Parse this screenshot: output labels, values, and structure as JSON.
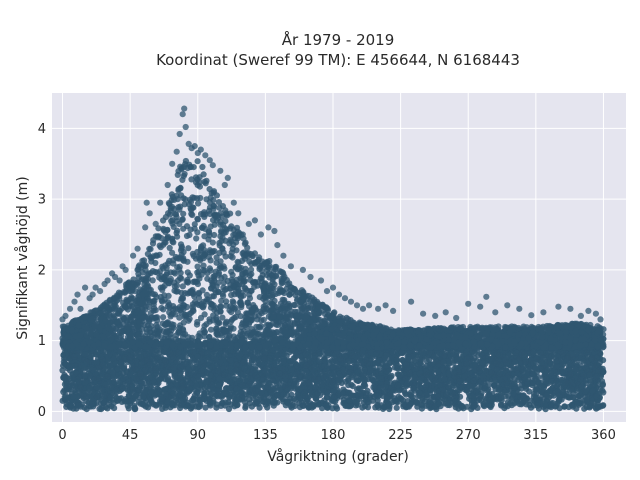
{
  "chart_data": {
    "type": "scatter",
    "title_line1": "År 1979 - 2019",
    "title_line2": "Koordinat (Sweref 99 TM): E 456644, N 6168443",
    "xlabel": "Vågriktning (grader)",
    "ylabel": "Signifikant våghöjd (m)",
    "xlim": [
      -7,
      375
    ],
    "ylim": [
      -0.15,
      4.5
    ],
    "xticks": [
      0,
      45,
      90,
      135,
      180,
      225,
      270,
      315,
      360
    ],
    "yticks": [
      0,
      1,
      2,
      3,
      4
    ],
    "grid": true,
    "marker_color": "#2f5670",
    "background": "#e5e5ef",
    "envelope": [
      {
        "x": 0,
        "y": 1.2
      },
      {
        "x": 15,
        "y": 1.35
      },
      {
        "x": 30,
        "y": 1.55
      },
      {
        "x": 45,
        "y": 1.85
      },
      {
        "x": 60,
        "y": 2.4
      },
      {
        "x": 70,
        "y": 2.9
      },
      {
        "x": 80,
        "y": 3.6
      },
      {
        "x": 88,
        "y": 3.6
      },
      {
        "x": 95,
        "y": 3.4
      },
      {
        "x": 105,
        "y": 3.0
      },
      {
        "x": 115,
        "y": 2.7
      },
      {
        "x": 125,
        "y": 2.3
      },
      {
        "x": 140,
        "y": 2.1
      },
      {
        "x": 155,
        "y": 1.8
      },
      {
        "x": 170,
        "y": 1.55
      },
      {
        "x": 185,
        "y": 1.35
      },
      {
        "x": 200,
        "y": 1.25
      },
      {
        "x": 225,
        "y": 1.15
      },
      {
        "x": 270,
        "y": 1.2
      },
      {
        "x": 315,
        "y": 1.2
      },
      {
        "x": 340,
        "y": 1.25
      },
      {
        "x": 360,
        "y": 1.2
      }
    ],
    "outliers": [
      {
        "x": 81,
        "y": 4.28
      },
      {
        "x": 80,
        "y": 4.2
      },
      {
        "x": 82,
        "y": 4.02
      },
      {
        "x": 78,
        "y": 3.92
      },
      {
        "x": 84,
        "y": 3.78
      },
      {
        "x": 76,
        "y": 3.67
      },
      {
        "x": 86,
        "y": 3.72
      },
      {
        "x": 95,
        "y": 3.62
      },
      {
        "x": 98,
        "y": 3.55
      },
      {
        "x": 110,
        "y": 3.3
      },
      {
        "x": 105,
        "y": 3.4
      },
      {
        "x": 90,
        "y": 3.65
      },
      {
        "x": 73,
        "y": 3.5
      },
      {
        "x": 70,
        "y": 3.2
      },
      {
        "x": 65,
        "y": 2.95
      },
      {
        "x": 55,
        "y": 2.6
      },
      {
        "x": 56,
        "y": 2.95
      },
      {
        "x": 58,
        "y": 2.8
      },
      {
        "x": 50,
        "y": 2.3
      },
      {
        "x": 47,
        "y": 2.2
      },
      {
        "x": 62,
        "y": 2.65
      },
      {
        "x": 40,
        "y": 2.05
      },
      {
        "x": 35,
        "y": 1.9
      },
      {
        "x": 30,
        "y": 1.85
      },
      {
        "x": 25,
        "y": 1.7
      },
      {
        "x": 20,
        "y": 1.65
      },
      {
        "x": 15,
        "y": 1.75
      },
      {
        "x": 10,
        "y": 1.65
      },
      {
        "x": 8,
        "y": 1.55
      },
      {
        "x": 5,
        "y": 1.45
      },
      {
        "x": 2,
        "y": 1.35
      },
      {
        "x": 0,
        "y": 1.3
      },
      {
        "x": 12,
        "y": 1.45
      },
      {
        "x": 18,
        "y": 1.6
      },
      {
        "x": 22,
        "y": 1.75
      },
      {
        "x": 28,
        "y": 1.8
      },
      {
        "x": 33,
        "y": 1.95
      },
      {
        "x": 38,
        "y": 1.85
      },
      {
        "x": 42,
        "y": 2.0
      },
      {
        "x": 120,
        "y": 2.5
      },
      {
        "x": 124,
        "y": 2.65
      },
      {
        "x": 128,
        "y": 2.7
      },
      {
        "x": 132,
        "y": 2.5
      },
      {
        "x": 137,
        "y": 2.6
      },
      {
        "x": 141,
        "y": 2.55
      },
      {
        "x": 143,
        "y": 2.35
      },
      {
        "x": 147,
        "y": 2.2
      },
      {
        "x": 152,
        "y": 2.05
      },
      {
        "x": 160,
        "y": 2.0
      },
      {
        "x": 165,
        "y": 1.9
      },
      {
        "x": 172,
        "y": 1.85
      },
      {
        "x": 176,
        "y": 1.7
      },
      {
        "x": 180,
        "y": 1.75
      },
      {
        "x": 184,
        "y": 1.65
      },
      {
        "x": 188,
        "y": 1.6
      },
      {
        "x": 192,
        "y": 1.55
      },
      {
        "x": 196,
        "y": 1.5
      },
      {
        "x": 200,
        "y": 1.45
      },
      {
        "x": 204,
        "y": 1.5
      },
      {
        "x": 210,
        "y": 1.45
      },
      {
        "x": 215,
        "y": 1.5
      },
      {
        "x": 220,
        "y": 1.42
      },
      {
        "x": 232,
        "y": 1.55
      },
      {
        "x": 240,
        "y": 1.38
      },
      {
        "x": 248,
        "y": 1.35
      },
      {
        "x": 255,
        "y": 1.4
      },
      {
        "x": 262,
        "y": 1.32
      },
      {
        "x": 270,
        "y": 1.52
      },
      {
        "x": 278,
        "y": 1.48
      },
      {
        "x": 282,
        "y": 1.62
      },
      {
        "x": 288,
        "y": 1.4
      },
      {
        "x": 296,
        "y": 1.5
      },
      {
        "x": 304,
        "y": 1.45
      },
      {
        "x": 312,
        "y": 1.36
      },
      {
        "x": 320,
        "y": 1.4
      },
      {
        "x": 330,
        "y": 1.48
      },
      {
        "x": 338,
        "y": 1.45
      },
      {
        "x": 345,
        "y": 1.35
      },
      {
        "x": 350,
        "y": 1.42
      },
      {
        "x": 355,
        "y": 1.38
      },
      {
        "x": 358,
        "y": 1.3
      },
      {
        "x": 100,
        "y": 3.48
      },
      {
        "x": 108,
        "y": 3.2
      },
      {
        "x": 114,
        "y": 2.95
      },
      {
        "x": 117,
        "y": 2.8
      },
      {
        "x": 92,
        "y": 3.7
      },
      {
        "x": 88,
        "y": 3.75
      }
    ]
  }
}
